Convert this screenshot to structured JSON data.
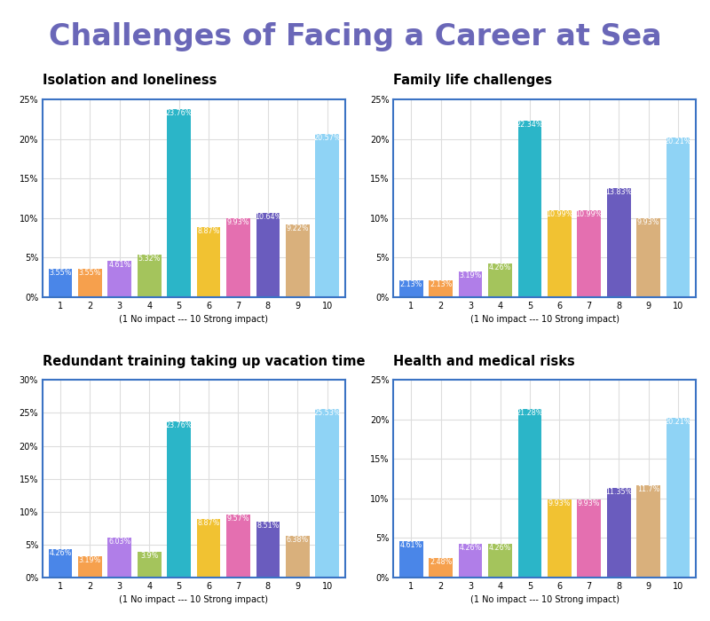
{
  "title": "Challenges of Facing a Career at Sea",
  "chart_data": [
    {
      "type": "bar",
      "title": "Isolation and loneliness",
      "x_label": "(1 No impact --- 10 Strong impact)",
      "categories": [
        "1",
        "2",
        "3",
        "4",
        "5",
        "6",
        "7",
        "8",
        "9",
        "10"
      ],
      "values": [
        3.55,
        3.55,
        4.61,
        5.32,
        23.76,
        8.87,
        9.93,
        10.64,
        9.22,
        20.57
      ],
      "value_labels": [
        "3.55%",
        "3.55%",
        "4.61%",
        "5.32%",
        "23.76%",
        "8.87%",
        "9.93%",
        "10.64%",
        "9.22%",
        "20.57%"
      ],
      "colors": [
        "#4a86e8",
        "#f6a04d",
        "#b07ee8",
        "#a4c45c",
        "#2bb5c8",
        "#f1c232",
        "#e46fb0",
        "#6a5cbe",
        "#d9b07c",
        "#8fd3f5"
      ],
      "ylim": [
        0,
        25
      ],
      "yticks": [
        {
          "value": 0,
          "label": "0%"
        },
        {
          "value": 5,
          "label": "5%"
        },
        {
          "value": 10,
          "label": "10%"
        },
        {
          "value": 15,
          "label": "15%"
        },
        {
          "value": 20,
          "label": "20%"
        },
        {
          "value": 25,
          "label": "25%"
        }
      ],
      "grid": true,
      "data_labels": true
    },
    {
      "type": "bar",
      "title": "Family life challenges",
      "x_label": "(1 No impact --- 10 Strong impact)",
      "categories": [
        "1",
        "2",
        "3",
        "4",
        "5",
        "6",
        "7",
        "8",
        "9",
        "10"
      ],
      "values": [
        2.13,
        2.13,
        3.19,
        4.26,
        22.34,
        10.99,
        10.99,
        13.83,
        9.93,
        20.21
      ],
      "value_labels": [
        "2.13%",
        "2.13%",
        "3.19%",
        "4.26%",
        "22.34%",
        "10.99%",
        "10.99%",
        "13.83%",
        "9.93%",
        "20.21%"
      ],
      "colors": [
        "#4a86e8",
        "#f6a04d",
        "#b07ee8",
        "#a4c45c",
        "#2bb5c8",
        "#f1c232",
        "#e46fb0",
        "#6a5cbe",
        "#d9b07c",
        "#8fd3f5"
      ],
      "ylim": [
        0,
        25
      ],
      "yticks": [
        {
          "value": 0,
          "label": "0%"
        },
        {
          "value": 5,
          "label": "5%"
        },
        {
          "value": 10,
          "label": "10%"
        },
        {
          "value": 15,
          "label": "15%"
        },
        {
          "value": 20,
          "label": "20%"
        },
        {
          "value": 25,
          "label": "25%"
        }
      ],
      "grid": true,
      "data_labels": true
    },
    {
      "type": "bar",
      "title": "Redundant training taking up vacation time",
      "x_label": "(1 No impact --- 10 Strong impact)",
      "categories": [
        "1",
        "2",
        "3",
        "4",
        "5",
        "6",
        "7",
        "8",
        "9",
        "10"
      ],
      "values": [
        4.26,
        3.19,
        6.03,
        3.9,
        23.76,
        8.87,
        9.57,
        8.51,
        6.38,
        25.53
      ],
      "value_labels": [
        "4.26%",
        "3.19%",
        "6.03%",
        "3.9%",
        "23.76%",
        "8.87%",
        "9.57%",
        "8.51%",
        "6.38%",
        "25.53%"
      ],
      "colors": [
        "#4a86e8",
        "#f6a04d",
        "#b07ee8",
        "#a4c45c",
        "#2bb5c8",
        "#f1c232",
        "#e46fb0",
        "#6a5cbe",
        "#d9b07c",
        "#8fd3f5"
      ],
      "ylim": [
        0,
        30
      ],
      "yticks": [
        {
          "value": 0,
          "label": "0%"
        },
        {
          "value": 5,
          "label": "5%"
        },
        {
          "value": 10,
          "label": "10%"
        },
        {
          "value": 15,
          "label": "15%"
        },
        {
          "value": 20,
          "label": "20%"
        },
        {
          "value": 25,
          "label": "25%"
        },
        {
          "value": 30,
          "label": "30%"
        }
      ],
      "grid": true,
      "data_labels": true
    },
    {
      "type": "bar",
      "title": "Health and medical risks",
      "x_label": "(1 No impact --- 10 Strong impact)",
      "categories": [
        "1",
        "2",
        "3",
        "4",
        "5",
        "6",
        "7",
        "8",
        "9",
        "10"
      ],
      "values": [
        4.61,
        2.48,
        4.26,
        4.26,
        21.28,
        9.93,
        9.93,
        11.35,
        11.7,
        20.21
      ],
      "value_labels": [
        "4.61%",
        "2.48%",
        "4.26%",
        "4.26%",
        "21.28%",
        "9.93%",
        "9.93%",
        "11.35%",
        "11.7%",
        "20.21%"
      ],
      "colors": [
        "#4a86e8",
        "#f6a04d",
        "#b07ee8",
        "#a4c45c",
        "#2bb5c8",
        "#f1c232",
        "#e46fb0",
        "#6a5cbe",
        "#d9b07c",
        "#8fd3f5"
      ],
      "ylim": [
        0,
        25
      ],
      "yticks": [
        {
          "value": 0,
          "label": "0%"
        },
        {
          "value": 5,
          "label": "5%"
        },
        {
          "value": 10,
          "label": "10%"
        },
        {
          "value": 15,
          "label": "15%"
        },
        {
          "value": 20,
          "label": "20%"
        },
        {
          "value": 25,
          "label": "25%"
        }
      ],
      "grid": true,
      "data_labels": true
    }
  ]
}
